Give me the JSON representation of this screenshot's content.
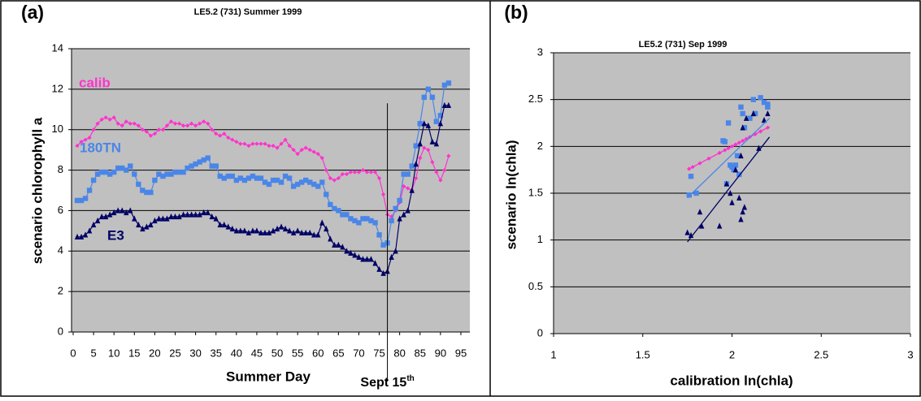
{
  "chart_data": [
    {
      "type": "line",
      "panel_label": "(a)",
      "title": "LE5.2 (731) Summer 1999",
      "x_label": "Summer Day",
      "y_label": "scenario chlorophyll a",
      "xlim": [
        0,
        97
      ],
      "ylim": [
        0,
        14
      ],
      "xticks": [
        0,
        5,
        10,
        15,
        20,
        25,
        30,
        35,
        40,
        45,
        50,
        55,
        60,
        65,
        70,
        75,
        80,
        85,
        90,
        95
      ],
      "yticks": [
        0,
        2,
        4,
        6,
        8,
        10,
        12,
        14
      ],
      "grid": true,
      "x": [
        1,
        2,
        3,
        4,
        5,
        6,
        7,
        8,
        9,
        10,
        11,
        12,
        13,
        14,
        15,
        16,
        17,
        18,
        19,
        20,
        21,
        22,
        23,
        24,
        25,
        26,
        27,
        28,
        29,
        30,
        31,
        32,
        33,
        34,
        35,
        36,
        37,
        38,
        39,
        40,
        41,
        42,
        43,
        44,
        45,
        46,
        47,
        48,
        49,
        50,
        51,
        52,
        53,
        54,
        55,
        56,
        57,
        58,
        59,
        60,
        61,
        62,
        63,
        64,
        65,
        66,
        67,
        68,
        69,
        70,
        71,
        72,
        73,
        74,
        75,
        76,
        77,
        78,
        79,
        80,
        81,
        82,
        83,
        84,
        85,
        86,
        87,
        88,
        89,
        90,
        91,
        92
      ],
      "series": [
        {
          "name": "calib",
          "color": "#ff33cc",
          "marker": "diamond",
          "values": [
            9.2,
            9.4,
            9.5,
            9.6,
            10.0,
            10.3,
            10.5,
            10.6,
            10.5,
            10.6,
            10.3,
            10.2,
            10.4,
            10.3,
            10.3,
            10.2,
            10.0,
            9.9,
            9.7,
            9.8,
            10.0,
            10.0,
            10.2,
            10.4,
            10.3,
            10.3,
            10.2,
            10.2,
            10.3,
            10.2,
            10.3,
            10.4,
            10.3,
            10.0,
            9.8,
            9.7,
            9.8,
            9.6,
            9.5,
            9.4,
            9.3,
            9.3,
            9.2,
            9.3,
            9.3,
            9.3,
            9.3,
            9.2,
            9.2,
            9.1,
            9.3,
            9.5,
            9.2,
            9.0,
            8.8,
            9.0,
            9.1,
            9.0,
            8.9,
            8.8,
            8.6,
            8.0,
            7.6,
            7.5,
            7.6,
            7.8,
            7.8,
            7.9,
            7.9,
            7.9,
            8.0,
            7.9,
            7.9,
            7.9,
            7.6,
            6.8,
            5.8,
            5.7,
            6.0,
            6.4,
            7.2,
            7.1,
            7.0,
            7.6,
            8.6,
            9.1,
            9.0,
            8.4,
            7.9,
            7.5,
            8.0,
            8.7
          ]
        },
        {
          "name": "180TN",
          "color": "#4a86e8",
          "marker": "square",
          "values": [
            6.5,
            6.5,
            6.6,
            7.0,
            7.5,
            7.8,
            7.9,
            7.9,
            7.8,
            7.9,
            8.1,
            8.1,
            8.0,
            8.2,
            7.8,
            7.3,
            7.0,
            6.9,
            6.9,
            7.5,
            7.8,
            7.7,
            7.8,
            7.8,
            7.9,
            7.9,
            7.9,
            8.1,
            8.2,
            8.3,
            8.4,
            8.5,
            8.6,
            8.2,
            8.2,
            7.7,
            7.6,
            7.7,
            7.7,
            7.5,
            7.6,
            7.5,
            7.6,
            7.7,
            7.6,
            7.6,
            7.4,
            7.3,
            7.5,
            7.5,
            7.4,
            7.7,
            7.6,
            7.2,
            7.3,
            7.4,
            7.5,
            7.4,
            7.3,
            7.2,
            7.4,
            6.8,
            6.3,
            6.1,
            6.0,
            5.8,
            5.8,
            5.6,
            5.5,
            5.4,
            5.6,
            5.6,
            5.5,
            5.4,
            4.8,
            4.3,
            4.4,
            5.5,
            6.1,
            6.5,
            7.8,
            7.8,
            8.2,
            9.2,
            10.3,
            11.6,
            12.0,
            11.6,
            10.4,
            10.7,
            12.2,
            12.3
          ]
        },
        {
          "name": "E3",
          "color": "#000066",
          "marker": "triangle",
          "values": [
            4.7,
            4.7,
            4.8,
            5.0,
            5.3,
            5.5,
            5.7,
            5.7,
            5.8,
            5.9,
            6.0,
            6.0,
            5.9,
            6.0,
            5.6,
            5.3,
            5.1,
            5.2,
            5.3,
            5.5,
            5.6,
            5.6,
            5.6,
            5.7,
            5.7,
            5.7,
            5.8,
            5.8,
            5.8,
            5.8,
            5.8,
            5.9,
            5.9,
            5.7,
            5.6,
            5.3,
            5.3,
            5.2,
            5.1,
            5.0,
            5.0,
            5.0,
            4.9,
            5.0,
            5.0,
            4.9,
            4.9,
            4.9,
            5.0,
            5.1,
            5.2,
            5.1,
            5.0,
            4.9,
            5.0,
            4.9,
            4.9,
            4.9,
            4.8,
            4.8,
            5.4,
            5.1,
            4.6,
            4.3,
            4.3,
            4.2,
            4.0,
            3.9,
            3.8,
            3.7,
            3.6,
            3.6,
            3.6,
            3.4,
            3.1,
            2.9,
            3.0,
            3.7,
            4.0,
            5.6,
            5.8,
            6.0,
            7.0,
            8.3,
            9.3,
            10.3,
            10.2,
            9.4,
            9.3,
            10.3,
            11.2,
            11.2
          ]
        }
      ],
      "vline": {
        "x": 77,
        "top": 11.3,
        "label": "Sept 15",
        "label_sup": "th"
      }
    },
    {
      "type": "scatter",
      "panel_label": "(b)",
      "title": "LE5.2 (731) Sep 1999",
      "x_label": "calibration ln(chla)",
      "y_label": "scenario ln(chla)",
      "xlim": [
        1,
        3
      ],
      "ylim": [
        0,
        3
      ],
      "xticks": [
        1,
        1.5,
        2,
        2.5,
        3
      ],
      "yticks": [
        0,
        0.5,
        1,
        1.5,
        2,
        2.5,
        3
      ],
      "grid": true,
      "series": [
        {
          "name": "calib",
          "color": "#ff33cc",
          "marker": "diamond",
          "x": [
            1.76,
            1.78,
            1.82,
            1.87,
            1.93,
            1.96,
            1.98,
            2.0,
            2.02,
            2.04,
            2.06,
            2.08,
            2.1,
            2.13,
            2.16,
            2.2
          ],
          "y": [
            1.76,
            1.78,
            1.82,
            1.87,
            1.93,
            1.96,
            1.98,
            2.0,
            2.02,
            2.04,
            2.06,
            2.08,
            2.1,
            2.13,
            2.16,
            2.2
          ],
          "fit_x": [
            1.75,
            2.21
          ],
          "fit_y": [
            1.75,
            2.21
          ]
        },
        {
          "name": "180TN",
          "color": "#4a86e8",
          "marker": "square",
          "x": [
            1.76,
            1.77,
            1.8,
            1.95,
            1.96,
            1.97,
            1.99,
            2.0,
            2.01,
            2.02,
            2.03,
            2.05,
            2.06,
            2.07,
            2.1,
            2.12,
            2.13,
            2.16,
            2.18,
            2.2,
            2.2,
            2.04,
            1.98
          ],
          "y": [
            1.48,
            1.68,
            1.5,
            2.06,
            2.05,
            1.6,
            1.8,
            1.78,
            1.75,
            1.8,
            1.9,
            2.42,
            2.35,
            2.2,
            2.3,
            2.5,
            2.35,
            2.52,
            2.47,
            2.45,
            2.42,
            1.7,
            2.25
          ],
          "fit_x": [
            1.75,
            2.21
          ],
          "fit_y": [
            1.45,
            2.3
          ]
        },
        {
          "name": "E3",
          "color": "#000066",
          "marker": "triangle",
          "x": [
            1.75,
            1.77,
            1.82,
            1.83,
            1.93,
            1.97,
            1.99,
            2.0,
            2.02,
            2.04,
            2.05,
            2.05,
            2.06,
            2.07,
            2.06,
            2.08,
            2.12,
            2.15,
            2.18,
            2.2
          ],
          "y": [
            1.08,
            1.05,
            1.3,
            1.15,
            1.15,
            1.6,
            1.5,
            1.4,
            1.75,
            1.45,
            1.9,
            1.22,
            1.3,
            1.35,
            2.2,
            2.3,
            2.35,
            1.98,
            2.28,
            2.35
          ],
          "fit_x": [
            1.75,
            2.21
          ],
          "fit_y": [
            0.98,
            2.1
          ]
        }
      ]
    }
  ]
}
